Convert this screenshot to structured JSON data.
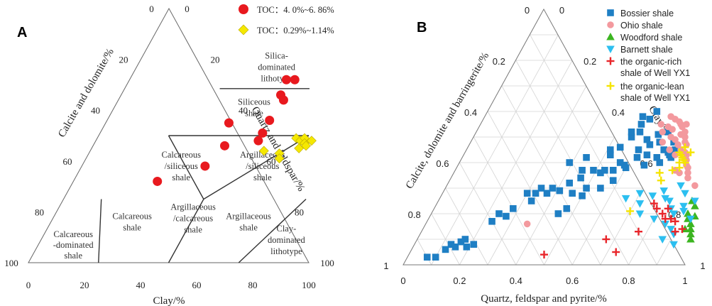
{
  "chart_data": [
    {
      "type": "ternary-scatter",
      "panel_label": "A",
      "axes": {
        "left": "Calcite and dolomite/%",
        "right": "Quartz and feldspar/%",
        "bottom": "Clay/%"
      },
      "ticks": {
        "bottom": [
          "0",
          "20",
          "40",
          "60",
          "80",
          "100"
        ],
        "left": [
          "0",
          "20",
          "40",
          "60",
          "80",
          "100"
        ],
        "right": [
          "100",
          "80",
          "60",
          "40",
          "20",
          "0"
        ]
      },
      "zones": [
        {
          "id": "silica-dominated",
          "label": [
            "Silica-",
            "dominated",
            "lithotype"
          ]
        },
        {
          "id": "siliceous-shale",
          "label": [
            "Siliceous",
            "shale"
          ]
        },
        {
          "id": "calcareous-siliceous",
          "label": [
            "Calcareous",
            "/siliceous",
            "shale"
          ]
        },
        {
          "id": "argillaceous-siliceous",
          "label": [
            "Argillaceous",
            "/siliceous",
            "shale"
          ]
        },
        {
          "id": "argillaceous-calcareous",
          "label": [
            "Argillaceous",
            "/calcareous",
            "shale"
          ]
        },
        {
          "id": "calcareous-shale",
          "label": [
            "Calcareous",
            "shale"
          ]
        },
        {
          "id": "argillaceous-shale",
          "label": [
            "Argillaceous",
            "shale"
          ]
        },
        {
          "id": "calcareous-dominated",
          "label": [
            "Calcareous",
            "-dominated",
            "shale"
          ]
        },
        {
          "id": "clay-dominated",
          "label": [
            "Clay-",
            "dominated",
            "lithotype"
          ]
        }
      ],
      "legend": [
        {
          "label": "TOC：4. 0%~6. 86%",
          "marker": "circle",
          "color": "#e8191e"
        },
        {
          "label": "TOC：0.29%~1.14%",
          "marker": "diamond",
          "color": "#f5e800"
        }
      ],
      "series": [
        {
          "name": "TOC：4. 0%~6. 86%",
          "points_xy": [
            [
              56,
              72
            ],
            [
              59,
              72
            ],
            [
              57,
              66
            ],
            [
              59,
              64
            ],
            [
              44,
              55
            ],
            [
              58,
              56
            ],
            [
              58,
              51
            ],
            [
              58,
              48
            ],
            [
              47,
              46
            ],
            [
              44,
              38
            ],
            [
              30,
              32
            ]
          ]
        },
        {
          "name": "TOC：0.29%~1.14%",
          "points_xy": [
            [
              71,
              49
            ],
            [
              73,
              48
            ],
            [
              74,
              49
            ],
            [
              75,
              47
            ],
            [
              74,
              45
            ],
            [
              76,
              46
            ],
            [
              77,
              48
            ],
            [
              62,
              44
            ],
            [
              68,
              43
            ],
            [
              69,
              41
            ]
          ]
        }
      ]
    },
    {
      "type": "ternary-scatter",
      "panel_label": "B",
      "axes": {
        "left": "Calcite, dolomite and barringerite/%",
        "right": "Clay/%",
        "bottom": "Quartz, feldspar and pyrite/%"
      },
      "ticks": {
        "bottom": [
          "0",
          "0.2",
          "0.4",
          "0.6",
          "0.8",
          "1"
        ],
        "left": [
          "0",
          "0.2",
          "0.4",
          "0.6",
          "0.8",
          "1"
        ],
        "right": [
          "1",
          "0.8",
          "0.6",
          "0.4",
          "0.2",
          "0"
        ]
      },
      "legend": [
        {
          "label": "Bossier shale",
          "marker": "square",
          "color": "#1f7fc4"
        },
        {
          "label": "Ohio shale",
          "marker": "circle",
          "color": "#f3999e"
        },
        {
          "label": "Woodford shale",
          "marker": "triangle-up",
          "color": "#3cb521"
        },
        {
          "label": "Barnett shale",
          "marker": "triangle-down",
          "color": "#2cbff0"
        },
        {
          "label": [
            "the organic-rich",
            "shale of Well YX1"
          ],
          "marker": "plus",
          "color": "#e8262b"
        },
        {
          "label": [
            "the organic-lean",
            "shale of Well YX1"
          ],
          "marker": "plus",
          "color": "#f5e400"
        }
      ],
      "series": [
        {
          "name": "Bossier shale",
          "points_xy": [
            [
              0.07,
              0.03
            ],
            [
              0.1,
              0.03
            ],
            [
              0.12,
              0.06
            ],
            [
              0.13,
              0.08
            ],
            [
              0.15,
              0.07
            ],
            [
              0.16,
              0.09
            ],
            [
              0.17,
              0.1
            ],
            [
              0.19,
              0.07
            ],
            [
              0.21,
              0.08
            ],
            [
              0.23,
              0.17
            ],
            [
              0.24,
              0.2
            ],
            [
              0.27,
              0.19
            ],
            [
              0.28,
              0.22
            ],
            [
              0.3,
              0.28
            ],
            [
              0.33,
              0.28
            ],
            [
              0.34,
              0.3
            ],
            [
              0.33,
              0.25
            ],
            [
              0.37,
              0.28
            ],
            [
              0.38,
              0.3
            ],
            [
              0.41,
              0.29
            ],
            [
              0.43,
              0.32
            ],
            [
              0.45,
              0.37
            ],
            [
              0.46,
              0.34
            ],
            [
              0.49,
              0.37
            ],
            [
              0.52,
              0.36
            ],
            [
              0.53,
              0.37
            ],
            [
              0.56,
              0.37
            ],
            [
              0.57,
              0.4
            ],
            [
              0.59,
              0.39
            ],
            [
              0.62,
              0.42
            ],
            [
              0.66,
              0.39
            ],
            [
              0.69,
              0.42
            ],
            [
              0.71,
              0.4
            ],
            [
              0.72,
              0.44
            ],
            [
              0.74,
              0.45
            ],
            [
              0.45,
              0.2
            ],
            [
              0.5,
              0.27
            ],
            [
              0.47,
              0.22
            ],
            [
              0.55,
              0.3
            ],
            [
              0.58,
              0.33
            ],
            [
              0.51,
              0.45
            ],
            [
              0.52,
              0.43
            ],
            [
              0.54,
              0.46
            ],
            [
              0.56,
              0.5
            ],
            [
              0.55,
              0.52
            ],
            [
              0.57,
              0.55
            ],
            [
              0.58,
              0.52
            ],
            [
              0.56,
              0.58
            ],
            [
              0.59,
              0.57
            ],
            [
              0.6,
              0.6
            ],
            [
              0.61,
              0.45
            ],
            [
              0.64,
              0.47
            ],
            [
              0.65,
              0.51
            ],
            [
              0.67,
              0.48
            ],
            [
              0.68,
              0.52
            ],
            [
              0.7,
              0.45
            ],
            [
              0.73,
              0.43
            ],
            [
              0.62,
              0.49
            ],
            [
              0.39,
              0.4
            ],
            [
              0.44,
              0.42
            ],
            [
              0.46,
              0.28
            ],
            [
              0.6,
              0.38
            ],
            [
              0.65,
              0.43
            ],
            [
              0.72,
              0.48
            ],
            [
              0.74,
              0.42
            ],
            [
              0.5,
              0.3
            ]
          ]
        },
        {
          "name": "Ohio shale",
          "points_xy": [
            [
              0.64,
              0.55
            ],
            [
              0.66,
              0.58
            ],
            [
              0.68,
              0.57
            ],
            [
              0.69,
              0.53
            ],
            [
              0.7,
              0.56
            ],
            [
              0.71,
              0.55
            ],
            [
              0.72,
              0.54
            ],
            [
              0.73,
              0.55
            ],
            [
              0.73,
              0.51
            ],
            [
              0.74,
              0.52
            ],
            [
              0.75,
              0.5
            ],
            [
              0.72,
              0.49
            ],
            [
              0.76,
              0.48
            ],
            [
              0.77,
              0.47
            ],
            [
              0.76,
              0.45
            ],
            [
              0.78,
              0.44
            ],
            [
              0.79,
              0.43
            ],
            [
              0.8,
              0.41
            ],
            [
              0.81,
              0.39
            ],
            [
              0.82,
              0.38
            ],
            [
              0.7,
              0.5
            ],
            [
              0.68,
              0.48
            ],
            [
              0.72,
              0.45
            ],
            [
              0.78,
              0.37
            ],
            [
              0.84,
              0.34
            ],
            [
              0.88,
              0.31
            ],
            [
              0.66,
              0.52
            ],
            [
              0.74,
              0.47
            ],
            [
              0.75,
              0.43
            ],
            [
              0.8,
              0.36
            ],
            [
              0.36,
              0.16
            ],
            [
              0.67,
              0.54
            ],
            [
              0.83,
              0.36
            ]
          ]
        },
        {
          "name": "Woodford shale",
          "points_xy": [
            [
              0.91,
              0.2
            ],
            [
              0.92,
              0.18
            ],
            [
              0.94,
              0.16
            ],
            [
              0.95,
              0.14
            ],
            [
              0.93,
              0.14
            ],
            [
              0.96,
              0.12
            ],
            [
              0.9,
              0.25
            ],
            [
              0.92,
              0.23
            ],
            [
              0.97,
              0.1
            ],
            [
              0.94,
              0.19
            ]
          ]
        },
        {
          "name": "Barnett shale",
          "points_xy": [
            [
              0.66,
              0.26
            ],
            [
              0.7,
              0.28
            ],
            [
              0.72,
              0.24
            ],
            [
              0.75,
              0.27
            ],
            [
              0.78,
              0.29
            ],
            [
              0.8,
              0.26
            ],
            [
              0.82,
              0.25
            ],
            [
              0.84,
              0.22
            ],
            [
              0.86,
              0.2
            ],
            [
              0.88,
              0.23
            ],
            [
              0.89,
              0.21
            ],
            [
              0.91,
              0.25
            ],
            [
              0.88,
              0.14
            ],
            [
              0.9,
              0.12
            ],
            [
              0.92,
              0.08
            ],
            [
              0.86,
              0.28
            ],
            [
              0.83,
              0.31
            ],
            [
              0.93,
              0.18
            ],
            [
              0.74,
              0.2
            ],
            [
              0.8,
              0.18
            ],
            [
              0.85,
              0.16
            ],
            [
              0.87,
              0.1
            ]
          ]
        },
        {
          "name": "organic-rich",
          "points_xy": [
            [
              0.79,
              0.22
            ],
            [
              0.82,
              0.2
            ],
            [
              0.84,
              0.18
            ],
            [
              0.86,
              0.18
            ],
            [
              0.88,
              0.17
            ],
            [
              0.9,
              0.13
            ],
            [
              0.77,
              0.13
            ],
            [
              0.67,
              0.1
            ],
            [
              0.73,
              0.05
            ],
            [
              0.48,
              0.04
            ],
            [
              0.77,
              0.24
            ],
            [
              0.83,
              0.22
            ],
            [
              0.92,
              0.14
            ]
          ]
        },
        {
          "name": "organic-lean",
          "points_xy": [
            [
              0.76,
              0.44
            ],
            [
              0.77,
              0.43
            ],
            [
              0.78,
              0.42
            ],
            [
              0.78,
              0.4
            ],
            [
              0.79,
              0.41
            ],
            [
              0.8,
              0.4
            ],
            [
              0.79,
              0.38
            ],
            [
              0.77,
              0.37
            ],
            [
              0.73,
              0.36
            ],
            [
              0.75,
              0.33
            ],
            [
              0.77,
              0.46
            ],
            [
              0.8,
              0.44
            ],
            [
              0.7,
              0.21
            ]
          ]
        }
      ]
    }
  ]
}
